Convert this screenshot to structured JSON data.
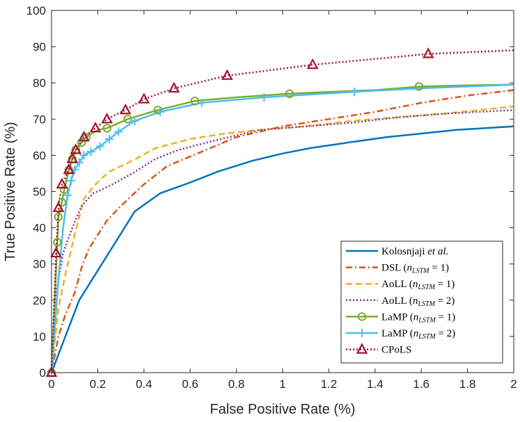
{
  "chart_data": {
    "type": "line",
    "xlabel": "False Positive Rate (%)",
    "ylabel": "True Positive Rate (%)",
    "xlim": [
      0,
      2
    ],
    "ylim": [
      0,
      100
    ],
    "x_ticks": [
      0,
      0.2,
      0.4,
      0.6,
      0.8,
      1,
      1.2,
      1.4,
      1.6,
      1.8,
      2
    ],
    "x_tick_labels": [
      "0",
      "0.2",
      "0.4",
      "0.6",
      "0.8",
      "1",
      "1.2",
      "1.4",
      "1.6",
      "1.8",
      "2"
    ],
    "y_ticks": [
      0,
      10,
      20,
      30,
      40,
      50,
      60,
      70,
      80,
      90,
      100
    ],
    "y_tick_labels": [
      "0",
      "10",
      "20",
      "30",
      "40",
      "50",
      "60",
      "70",
      "80",
      "90",
      "100"
    ],
    "legend_position": "bottom-right",
    "series": [
      {
        "name": "Kolosnjaji et al.",
        "legend": [
          {
            "t": "Kolosnjaji "
          },
          {
            "t": "et al.",
            "i": true
          }
        ],
        "color": "#0072BD",
        "dash": "solid",
        "marker": "none",
        "x": [
          0,
          0.12,
          0.36,
          0.47,
          0.6,
          0.72,
          0.87,
          1.0,
          1.12,
          1.28,
          1.45,
          1.6,
          1.75,
          1.88,
          2.0
        ],
        "y": [
          0,
          20,
          44.5,
          49.5,
          52.5,
          55.5,
          58.5,
          60.5,
          62,
          63.5,
          65,
          66,
          67,
          67.5,
          68
        ]
      },
      {
        "name": "DSL (n_LSTM = 1)",
        "legend": [
          {
            "t": "DSL ("
          },
          {
            "t": "n",
            "i": true
          },
          {
            "t": "LSTM",
            "i": true,
            "s": true
          },
          {
            "t": " = 1)"
          }
        ],
        "color": "#D95319",
        "dash": "dashdot",
        "marker": "none",
        "x": [
          0,
          0.03,
          0.06,
          0.1,
          0.13,
          0.16,
          0.2,
          0.24,
          0.3,
          0.4,
          0.5,
          0.65,
          0.8,
          1.0,
          1.2,
          1.4,
          1.6,
          1.8,
          2.0
        ],
        "y": [
          0,
          10,
          16,
          22,
          29,
          34,
          38,
          42,
          46,
          52,
          57,
          61,
          65,
          68,
          70,
          72,
          74.5,
          76.5,
          78
        ]
      },
      {
        "name": "AoLL (n_LSTM = 1)",
        "legend": [
          {
            "t": "AoLL ("
          },
          {
            "t": "n",
            "i": true
          },
          {
            "t": "LSTM",
            "i": true,
            "s": true
          },
          {
            "t": " = 1)"
          }
        ],
        "color": "#EDB120",
        "dash": "dash",
        "marker": "none",
        "x": [
          0,
          0.03,
          0.06,
          0.1,
          0.14,
          0.19,
          0.25,
          0.35,
          0.45,
          0.6,
          0.75,
          0.9,
          1.1,
          1.3,
          1.5,
          1.7,
          2.0
        ],
        "y": [
          0,
          18,
          27,
          38,
          48,
          52,
          55.5,
          58.5,
          62,
          64.5,
          66,
          67,
          68,
          69.5,
          70.5,
          71.5,
          73.5
        ]
      },
      {
        "name": "AoLL (n_LSTM = 2)",
        "legend": [
          {
            "t": "AoLL ("
          },
          {
            "t": "n",
            "i": true
          },
          {
            "t": "LSTM",
            "i": true,
            "s": true
          },
          {
            "t": " = 2)"
          }
        ],
        "color": "#7E2F8E",
        "dash": "dot",
        "marker": "none",
        "x": [
          0,
          0.02,
          0.05,
          0.09,
          0.13,
          0.18,
          0.25,
          0.35,
          0.45,
          0.55,
          0.7,
          0.9,
          1.1,
          1.3,
          1.5,
          1.7,
          2.0
        ],
        "y": [
          0,
          22,
          33,
          40,
          46,
          49.5,
          51.5,
          55,
          59,
          61.5,
          64,
          67,
          68,
          69,
          70.5,
          71.5,
          72.5
        ]
      },
      {
        "name": "LaMP (n_LSTM = 1)",
        "legend": [
          {
            "t": "LaMP ("
          },
          {
            "t": "n",
            "i": true
          },
          {
            "t": "LSTM",
            "i": true,
            "s": true
          },
          {
            "t": " = 1)"
          }
        ],
        "color": "#77AC30",
        "dash": "solid",
        "marker": "circle",
        "x": [
          0,
          0.025,
          0.03,
          0.045,
          0.055,
          0.075,
          0.09,
          0.105,
          0.13,
          0.15,
          0.2,
          0.24,
          0.33,
          0.46,
          0.62,
          0.8,
          1.03,
          1.2,
          1.4,
          1.6,
          1.8,
          2.0
        ],
        "y": [
          0,
          36,
          43,
          47,
          50.5,
          56,
          59,
          61.5,
          63.5,
          65,
          67,
          67.5,
          70,
          72.5,
          75,
          76,
          77,
          77.5,
          78,
          79,
          79.3,
          79.5
        ],
        "marker_x": [
          0,
          0.025,
          0.03,
          0.045,
          0.055,
          0.075,
          0.09,
          0.105,
          0.13,
          0.15,
          0.24,
          0.33,
          0.46,
          0.62,
          1.03,
          1.59
        ],
        "marker_y": [
          0,
          36,
          43,
          47,
          50.5,
          56,
          59,
          61.5,
          63.5,
          65,
          67.5,
          70,
          72.5,
          75,
          77,
          79
        ]
      },
      {
        "name": "LaMP (n_LSTM = 2)",
        "legend": [
          {
            "t": "LaMP ("
          },
          {
            "t": "n",
            "i": true
          },
          {
            "t": "LSTM",
            "i": true,
            "s": true
          },
          {
            "t": " = 2)"
          }
        ],
        "color": "#4DBEEE",
        "dash": "solid",
        "marker": "plus",
        "x": [
          0,
          0.03,
          0.05,
          0.07,
          0.085,
          0.1,
          0.12,
          0.14,
          0.17,
          0.21,
          0.25,
          0.29,
          0.36,
          0.47,
          0.65,
          0.92,
          1.3,
          1.6,
          1.8,
          2.0
        ],
        "y": [
          0,
          26,
          40,
          49,
          53,
          56,
          58,
          60,
          61,
          62.5,
          64.5,
          66.5,
          69.5,
          72,
          74.5,
          76,
          77.5,
          78.5,
          79,
          79.5
        ],
        "marker_x": [
          0,
          0.07,
          0.085,
          0.1,
          0.12,
          0.14,
          0.17,
          0.21,
          0.25,
          0.29,
          0.36,
          0.47,
          0.65,
          0.92,
          1.31
        ],
        "marker_y": [
          0,
          49,
          53,
          56,
          58,
          60,
          61,
          62.5,
          64.5,
          66.5,
          69.5,
          72,
          74.5,
          76,
          77.5
        ]
      },
      {
        "name": "CPoLS",
        "legend": [
          {
            "t": "CPoLS"
          }
        ],
        "color": "#A2142F",
        "dash": "dot",
        "marker": "triangle",
        "x": [
          0,
          0.02,
          0.03,
          0.045,
          0.075,
          0.09,
          0.105,
          0.14,
          0.19,
          0.24,
          0.32,
          0.4,
          0.53,
          0.76,
          1.13,
          1.63,
          2.0
        ],
        "y": [
          0,
          33,
          45.5,
          52,
          56,
          59,
          61.5,
          65,
          67.5,
          70,
          72.5,
          75.5,
          78.5,
          82,
          85,
          88,
          89
        ],
        "marker_x": [
          0,
          0.02,
          0.03,
          0.045,
          0.075,
          0.09,
          0.105,
          0.14,
          0.19,
          0.24,
          0.32,
          0.4,
          0.53,
          0.76,
          1.13,
          1.63
        ],
        "marker_y": [
          0,
          33,
          45.5,
          52,
          56,
          59,
          61.5,
          65,
          67.5,
          70,
          72.5,
          75.5,
          78.5,
          82,
          85,
          88
        ]
      }
    ]
  }
}
